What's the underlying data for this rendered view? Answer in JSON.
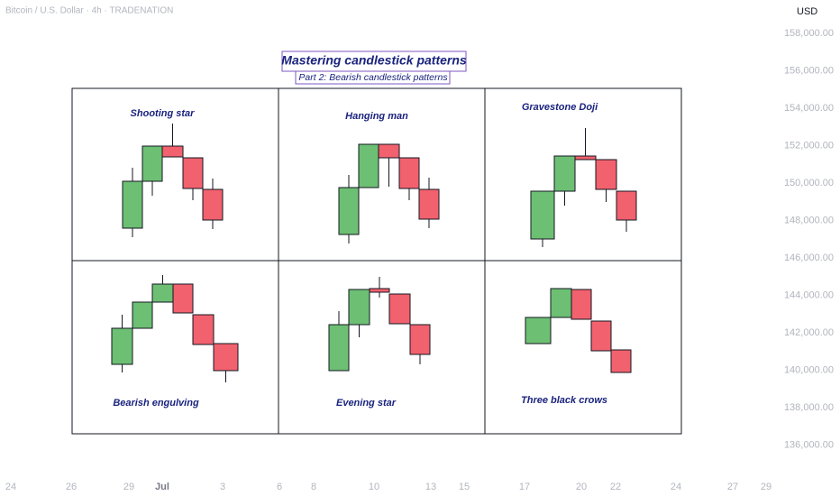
{
  "header": {
    "symbol": "Bitcoin / U.S. Dollar · 4h · TRADENATION",
    "currency": "USD"
  },
  "price_axis": [
    "158,000.00",
    "156,000.00",
    "154,000.00",
    "152,000.00",
    "150,000.00",
    "148,000.00",
    "146,000.00",
    "144,000.00",
    "142,000.00",
    "140,000.00",
    "138,000.00",
    "136,000.00"
  ],
  "time_axis": [
    "24",
    "26",
    "29",
    "Jul",
    "3",
    "6",
    "8",
    "10",
    "13",
    "15",
    "17",
    "20",
    "22",
    "24",
    "27",
    "29"
  ],
  "drawing": {
    "title": "Mastering candlestick patterns",
    "subtitle": "Part 2: Bearish candlestick patterns",
    "panels": [
      "Shooting star",
      "Hanging man",
      "Gravestone Doji",
      "Bearish engulving",
      "Evening star",
      "Three black crows"
    ]
  }
}
